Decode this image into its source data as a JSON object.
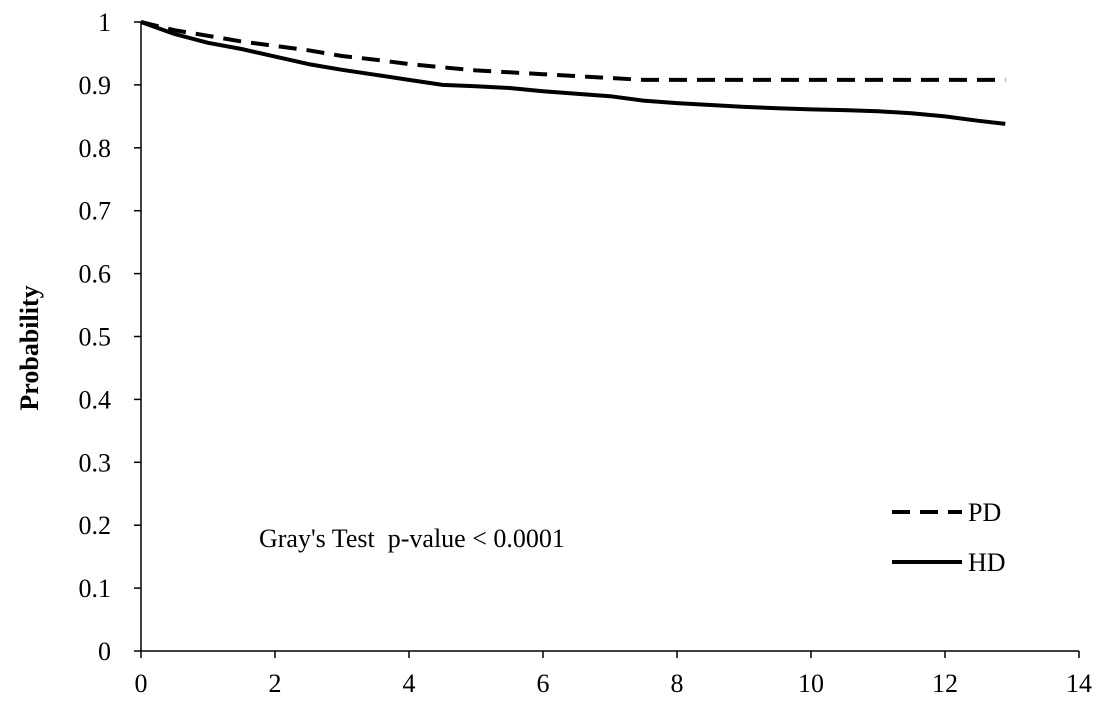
{
  "chart_data": {
    "type": "line",
    "title": "",
    "xlabel": "",
    "ylabel": "Probability",
    "xlim": [
      0,
      14
    ],
    "ylim": [
      0,
      1
    ],
    "x_ticks": [
      0,
      2,
      4,
      6,
      8,
      10,
      12,
      14
    ],
    "x_tick_labels": [
      "0",
      "2",
      "4",
      "6",
      "8",
      "10",
      "12",
      "14"
    ],
    "y_ticks": [
      0,
      0.1,
      0.2,
      0.3,
      0.4,
      0.5,
      0.6,
      0.7,
      0.8,
      0.9,
      1
    ],
    "y_tick_labels": [
      "0",
      "0.1",
      "0.2",
      "0.3",
      "0.4",
      "0.5",
      "0.6",
      "0.7",
      "0.8",
      "0.9",
      "1"
    ],
    "grid": false,
    "legend_position": "bottom-right",
    "annotation": "Gray's Test  p-value < 0.0001",
    "series": [
      {
        "name": "PD",
        "style": "dashed",
        "color": "#000000",
        "x": [
          0,
          0.5,
          1,
          1.5,
          2,
          2.5,
          3,
          3.5,
          4,
          4.5,
          5,
          5.5,
          6,
          6.5,
          7,
          7.5,
          8,
          9,
          10,
          11,
          12,
          12.9
        ],
        "y": [
          1.0,
          0.987,
          0.978,
          0.969,
          0.962,
          0.955,
          0.946,
          0.94,
          0.933,
          0.928,
          0.923,
          0.92,
          0.917,
          0.914,
          0.911,
          0.908,
          0.908,
          0.908,
          0.908,
          0.908,
          0.908,
          0.908
        ]
      },
      {
        "name": "HD",
        "style": "solid",
        "color": "#000000",
        "x": [
          0,
          0.5,
          1,
          1.5,
          2,
          2.5,
          3,
          3.5,
          4,
          4.5,
          5,
          5.5,
          6,
          6.5,
          7,
          7.5,
          8,
          8.5,
          9,
          9.5,
          10,
          10.5,
          11,
          11.5,
          12,
          12.5,
          12.9
        ],
        "y": [
          1.0,
          0.981,
          0.967,
          0.957,
          0.945,
          0.933,
          0.924,
          0.916,
          0.908,
          0.9,
          0.898,
          0.895,
          0.89,
          0.886,
          0.882,
          0.875,
          0.871,
          0.868,
          0.865,
          0.863,
          0.861,
          0.86,
          0.858,
          0.855,
          0.85,
          0.843,
          0.838
        ]
      }
    ]
  }
}
